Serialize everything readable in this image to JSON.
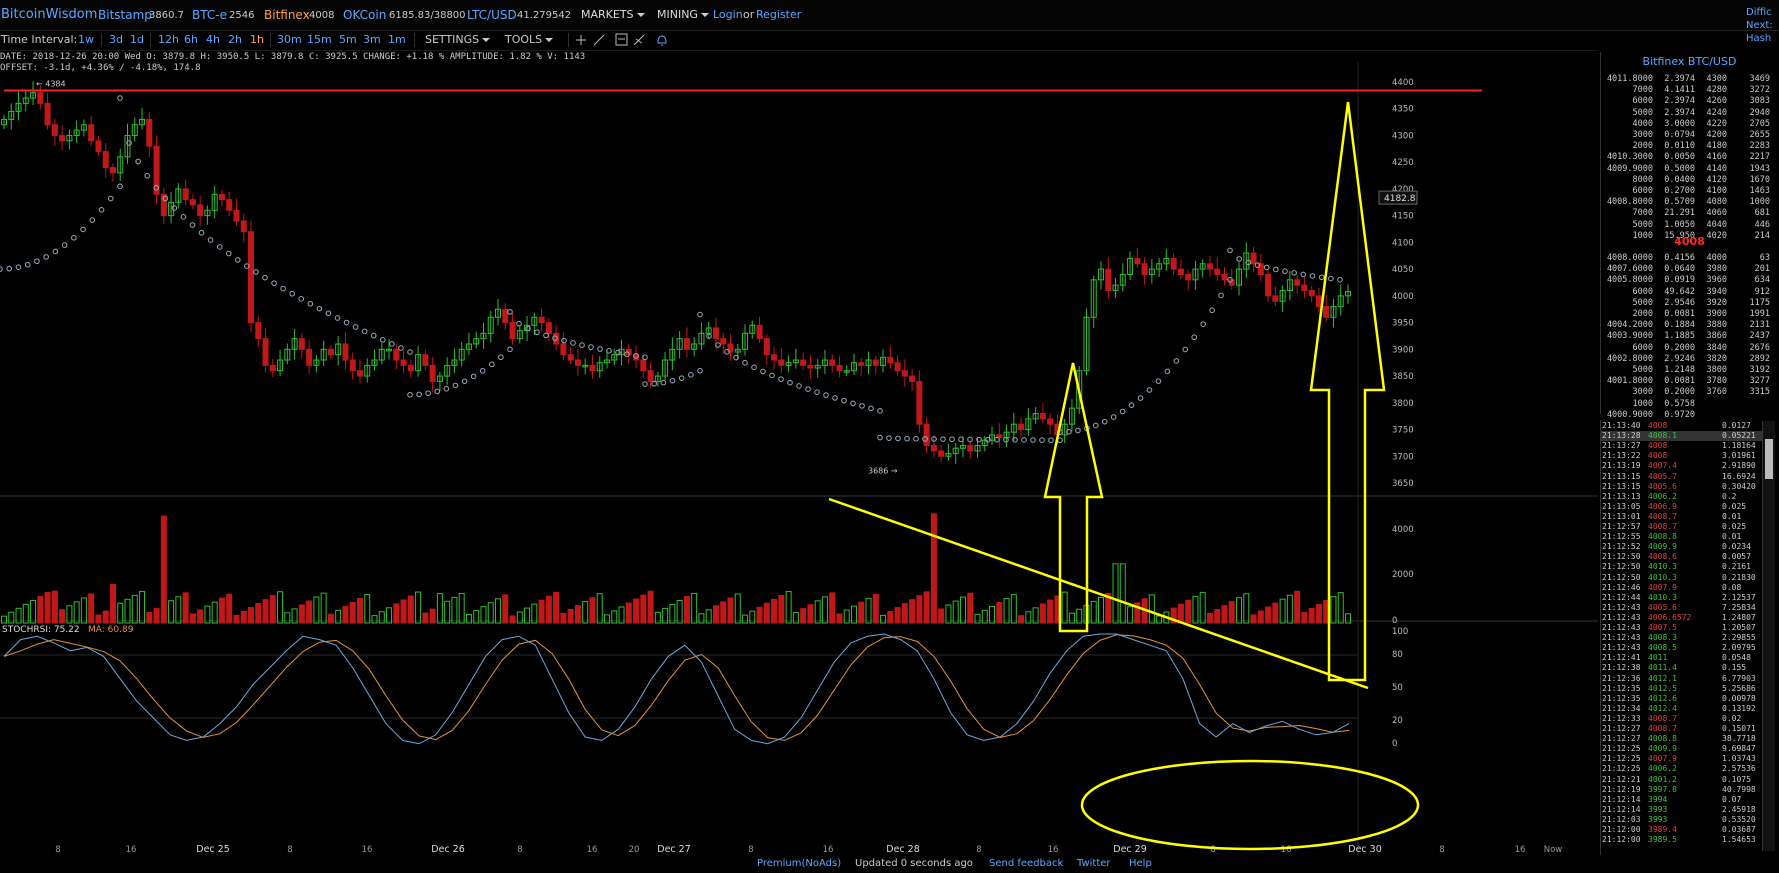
{
  "nav": {
    "brand": "BitcoinWisdom",
    "tickers": [
      {
        "name": "Bitstamp",
        "value": "3860.7",
        "color": "#5aa9ff"
      },
      {
        "name": "BTC-e",
        "value": "2546",
        "color": "#5aa9ff"
      },
      {
        "name": "Bitfinex",
        "value": "4008",
        "color": "#ffa040"
      },
      {
        "name": "OKCoin",
        "value": "6185.83/38800",
        "color": "#5aa9ff"
      },
      {
        "name": "LTC/USD",
        "value": "41.279542",
        "color": "#5aa9ff"
      }
    ],
    "markets": "MARKETS",
    "mining": "MINING",
    "login": "Login",
    "or": "or",
    "register": "Register"
  },
  "right_edge": [
    "Diffic",
    "Next:",
    "Hash"
  ],
  "toolbar": {
    "time_interval_label": "Time Interval:",
    "intervals_a": [
      "1w",
      "3d",
      "1d"
    ],
    "intervals_b": [
      "12h",
      "6h",
      "4h",
      "2h",
      "1h"
    ],
    "intervals_c": [
      "30m",
      "15m",
      "5m",
      "3m",
      "1m"
    ],
    "active_interval": "1h",
    "settings": "SETTINGS",
    "tools": "TOOLS"
  },
  "info": {
    "line1": "DATE: 2018-12-26 20:00 Wed   O: 3879.8   H: 3950.5   L: 3879.8   C: 3925.5   CHANGE: +1.18 %   AMPLITUDE: 1.82 %   V: 1143",
    "line2": "OFFSET: -3.1d, +4.36% / -4.18%, 174.8"
  },
  "chart_data": {
    "type": "candlestick",
    "price_axis": [
      "4400",
      "4350",
      "4300",
      "4250",
      "4200",
      "4150",
      "4100",
      "4050",
      "4000",
      "3950",
      "3900",
      "3850",
      "3800",
      "3750",
      "3700",
      "3650"
    ],
    "price_range": [
      3650,
      4400
    ],
    "cursor_price": "4182.8",
    "high_marker": "4384",
    "low_marker": "3686",
    "volume_axis": [
      "4000",
      "2000",
      "0"
    ],
    "stochrsi_label": "STOCHRSI: 75.22",
    "ma_label": "MA: 60.89",
    "stoch_axis": [
      "100",
      "80",
      "50",
      "20",
      "0"
    ],
    "time_axis": [
      "8",
      "16",
      "Dec 25",
      "8",
      "16",
      "Dec 26",
      "8",
      "16",
      "20",
      "Dec 27",
      "8",
      "16",
      "Dec 28",
      "8",
      "16",
      "Dec 29",
      "8",
      "16",
      "Dec 30",
      "8",
      "16",
      "Now"
    ],
    "colors": {
      "up": "#2fbf2f",
      "down": "#c01818",
      "annotation": "#ffff00",
      "resistance": "#ff2020",
      "stoch_k": "#6fa8dc",
      "stoch_d": "#e69138"
    }
  },
  "orderbook": {
    "title": "Bitfinex BTC/USD",
    "asks": [
      [
        "4011.8000",
        "2.3974",
        "4300",
        "3469"
      ],
      [
        "7000",
        "4.1411",
        "4280",
        "3272"
      ],
      [
        "6000",
        "2.3974",
        "4260",
        "3083"
      ],
      [
        "5000",
        "2.3974",
        "4240",
        "2940"
      ],
      [
        "4000",
        "3.0000",
        "4220",
        "2705"
      ],
      [
        "3000",
        "0.0794",
        "4200",
        "2655"
      ],
      [
        "2000",
        "0.0110",
        "4180",
        "2283"
      ],
      [
        "4010.3000",
        "0.0050",
        "4160",
        "2217"
      ],
      [
        "4009.9000",
        "0.5000",
        "4140",
        "1943"
      ],
      [
        "8000",
        "0.0400",
        "4120",
        "1670"
      ],
      [
        "6000",
        "0.2700",
        "4100",
        "1463"
      ],
      [
        "4008.8000",
        "0.5709",
        "4080",
        "1000"
      ],
      [
        "7000",
        "21.291",
        "4060",
        "681"
      ],
      [
        "5000",
        "1.0050",
        "4040",
        "446"
      ],
      [
        "1000",
        "15.950",
        "4020",
        "214"
      ]
    ],
    "mid": "4008",
    "bids": [
      [
        "4008.0000",
        "0.4156",
        "4000",
        "63"
      ],
      [
        "4007.6000",
        "0.0640",
        "3980",
        "201"
      ],
      [
        "4005.8000",
        "0.0919",
        "3960",
        "634"
      ],
      [
        "6000",
        "49.642",
        "3940",
        "912"
      ],
      [
        "5000",
        "2.9546",
        "3920",
        "1175"
      ],
      [
        "2000",
        "0.0081",
        "3900",
        "1991"
      ],
      [
        "4004.2000",
        "0.1884",
        "3880",
        "2131"
      ],
      [
        "4003.9000",
        "1.1885",
        "3860",
        "2437"
      ],
      [
        "6000",
        "0.2000",
        "3840",
        "2676"
      ],
      [
        "4002.8000",
        "2.9246",
        "3820",
        "2892"
      ],
      [
        "5000",
        "1.2148",
        "3800",
        "3192"
      ],
      [
        "4001.8000",
        "0.0081",
        "3780",
        "3277"
      ],
      [
        "3000",
        "0.2000",
        "3760",
        "3315"
      ],
      [
        "1000",
        "0.5758",
        "",
        ""
      ],
      [
        "4000.9000",
        "0.9720",
        "",
        ""
      ]
    ]
  },
  "trades": [
    [
      "21:13:40",
      "4008",
      "0.0127",
      "r"
    ],
    [
      "21:13:28",
      "4008.1",
      "0.05221",
      "g"
    ],
    [
      "21:13:27",
      "4008",
      "1.18164",
      "r"
    ],
    [
      "21:13:22",
      "4008",
      "3.01961",
      "r"
    ],
    [
      "21:13:19",
      "4007.4",
      "2.91890",
      "r"
    ],
    [
      "21:13:15",
      "4005.7",
      "16.6924",
      "r"
    ],
    [
      "21:13:15",
      "4005.6",
      "0.30420",
      "r"
    ],
    [
      "21:13:13",
      "4006.2",
      "0.2",
      "g"
    ],
    [
      "21:13:05",
      "4006.9",
      "0.025",
      "r"
    ],
    [
      "21:13:01",
      "4008.7",
      "0.01",
      "r"
    ],
    [
      "21:12:57",
      "4008.7",
      "0.025",
      "r"
    ],
    [
      "21:12:55",
      "4008.8",
      "0.01",
      "g"
    ],
    [
      "21:12:52",
      "4009.9",
      "0.0234",
      "g"
    ],
    [
      "21:12:50",
      "4008.6",
      "0.0057",
      "r"
    ],
    [
      "21:12:50",
      "4010.3",
      "0.2161",
      "g"
    ],
    [
      "21:12:50",
      "4010.3",
      "0.21830",
      "g"
    ],
    [
      "21:12:46",
      "4007.9",
      "0.08",
      "r"
    ],
    [
      "21:12:44",
      "4010.3",
      "2.12537",
      "g"
    ],
    [
      "21:12:43",
      "4005.6",
      "7.25834",
      "r"
    ],
    [
      "21:12:43",
      "4006.6572",
      "1.24807",
      "r"
    ],
    [
      "21:12:43",
      "4007.5",
      "1.20507",
      "r"
    ],
    [
      "21:12:43",
      "4008.3",
      "2.29855",
      "g"
    ],
    [
      "21:12:43",
      "4008.5",
      "2.09795",
      "g"
    ],
    [
      "21:12:41",
      "4011",
      "0.0548",
      "g"
    ],
    [
      "21:12:38",
      "4011.4",
      "0.155",
      "g"
    ],
    [
      "21:12:36",
      "4012.1",
      "6.77903",
      "g"
    ],
    [
      "21:12:35",
      "4012.5",
      "5.25686",
      "g"
    ],
    [
      "21:12:35",
      "4012.6",
      "0.00978",
      "g"
    ],
    [
      "21:12:34",
      "4012.4",
      "0.13192",
      "g"
    ],
    [
      "21:12:33",
      "4008.7",
      "0.02",
      "r"
    ],
    [
      "21:12:27",
      "4008.7",
      "0.15071",
      "r"
    ],
    [
      "21:12:27",
      "4008.8",
      "38.7718",
      "g"
    ],
    [
      "21:12:25",
      "4009.9",
      "9.69847",
      "g"
    ],
    [
      "21:12:25",
      "4007.9",
      "1.03743",
      "r"
    ],
    [
      "21:12:25",
      "4006.2",
      "2.57536",
      "g"
    ],
    [
      "21:12:21",
      "4001.2",
      "0.1075",
      "g"
    ],
    [
      "21:12:19",
      "3997.8",
      "40.7998",
      "g"
    ],
    [
      "21:12:14",
      "3994",
      "0.07",
      "g"
    ],
    [
      "21:12:14",
      "3993",
      "2.45918",
      "g"
    ],
    [
      "21:12:03",
      "3993",
      "0.53520",
      "g"
    ],
    [
      "21:12:00",
      "3989.4",
      "0.03687",
      "r"
    ],
    [
      "21:12:00",
      "3989.5",
      "1.54653",
      "g"
    ]
  ],
  "footer": {
    "premium": "Premium(NoAds)",
    "updated": "Updated 0 seconds ago",
    "feedback": "Send feedback",
    "twitter": "Twitter",
    "help": "Help"
  }
}
